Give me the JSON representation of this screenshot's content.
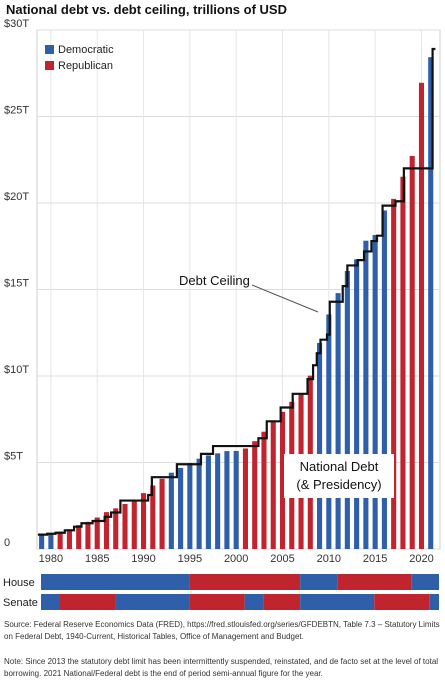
{
  "chart_data": {
    "type": "bar",
    "title": "National debt vs. debt ceiling, trillions of USD",
    "ylim": [
      0,
      30
    ],
    "y_ticks": [
      {
        "value": 0,
        "label": "0"
      },
      {
        "value": 5,
        "label": "$5T"
      },
      {
        "value": 10,
        "label": "$10T"
      },
      {
        "value": 15,
        "label": "$15T"
      },
      {
        "value": 20,
        "label": "$20T"
      },
      {
        "value": 25,
        "label": "$25T"
      },
      {
        "value": 30,
        "label": "$30T"
      }
    ],
    "x_ticks": [
      "1980",
      "1985",
      "1990",
      "1995",
      "2000",
      "2005",
      "2010",
      "2015",
      "2020"
    ],
    "grid": true,
    "legend_position": "top-left",
    "legend": [
      {
        "label": "Democratic",
        "color": "#2e5fa8"
      },
      {
        "label": "Republican",
        "color": "#c0242e"
      }
    ],
    "years": [
      1979,
      1980,
      1981,
      1982,
      1983,
      1984,
      1985,
      1986,
      1987,
      1988,
      1989,
      1990,
      1991,
      1992,
      1993,
      1994,
      1995,
      1996,
      1997,
      1998,
      1999,
      2000,
      2001,
      2002,
      2003,
      2004,
      2005,
      2006,
      2007,
      2008,
      2009,
      2010,
      2011,
      2012,
      2013,
      2014,
      2015,
      2016,
      2017,
      2018,
      2019,
      2020,
      2021
    ],
    "national_debt": [
      0.83,
      0.91,
      1.0,
      1.14,
      1.38,
      1.57,
      1.82,
      2.13,
      2.35,
      2.6,
      2.86,
      3.23,
      3.67,
      4.06,
      4.41,
      4.69,
      4.97,
      5.22,
      5.41,
      5.53,
      5.66,
      5.67,
      5.81,
      6.23,
      6.78,
      7.38,
      7.93,
      8.51,
      9.01,
      10.02,
      11.91,
      13.56,
      14.79,
      16.07,
      16.74,
      17.82,
      18.15,
      19.57,
      20.24,
      21.52,
      22.72,
      26.95,
      28.43
    ],
    "presidency": [
      "D",
      "D",
      "R",
      "R",
      "R",
      "R",
      "R",
      "R",
      "R",
      "R",
      "R",
      "R",
      "R",
      "R",
      "D",
      "D",
      "D",
      "D",
      "D",
      "D",
      "D",
      "D",
      "R",
      "R",
      "R",
      "R",
      "R",
      "R",
      "R",
      "R",
      "D",
      "D",
      "D",
      "D",
      "D",
      "D",
      "D",
      "D",
      "R",
      "R",
      "R",
      "R",
      "D"
    ],
    "ceiling_steps": [
      [
        1978.6,
        0.83
      ],
      [
        1979.6,
        0.88
      ],
      [
        1980.5,
        0.94
      ],
      [
        1981.5,
        1.08
      ],
      [
        1982.5,
        1.29
      ],
      [
        1983.3,
        1.49
      ],
      [
        1984.5,
        1.62
      ],
      [
        1985.8,
        1.86
      ],
      [
        1986.5,
        2.11
      ],
      [
        1987.5,
        2.8
      ],
      [
        1990.5,
        3.12
      ],
      [
        1990.9,
        4.15
      ],
      [
        1993.6,
        4.9
      ],
      [
        1996.2,
        5.5
      ],
      [
        1997.5,
        5.95
      ],
      [
        2002.4,
        6.4
      ],
      [
        2003.3,
        7.38
      ],
      [
        2004.8,
        8.18
      ],
      [
        2006.1,
        8.97
      ],
      [
        2007.7,
        9.82
      ],
      [
        2008.3,
        10.62
      ],
      [
        2008.7,
        11.32
      ],
      [
        2009.1,
        12.1
      ],
      [
        2009.8,
        12.39
      ],
      [
        2010.1,
        14.29
      ],
      [
        2011.5,
        15.2
      ],
      [
        2011.9,
        15.19
      ],
      [
        2012.0,
        16.39
      ],
      [
        2013.1,
        16.7
      ],
      [
        2013.8,
        17.2
      ],
      [
        2014.6,
        17.8
      ],
      [
        2015.2,
        18.11
      ],
      [
        2015.8,
        19.85
      ],
      [
        2017.2,
        20.1
      ],
      [
        2018.1,
        22.0
      ],
      [
        2020.8,
        22.0
      ],
      [
        2021.2,
        28.9
      ],
      [
        2021.5,
        28.9
      ]
    ],
    "annotations": [
      {
        "text": "Debt Ceiling"
      },
      {
        "text": "National Debt"
      },
      {
        "text": "(& Presidency)"
      }
    ]
  },
  "control_strips": [
    {
      "label": "House",
      "segments": [
        {
          "from": 1979,
          "to": 1995,
          "party": "D"
        },
        {
          "from": 1995,
          "to": 2007,
          "party": "R"
        },
        {
          "from": 2007,
          "to": 2011,
          "party": "D"
        },
        {
          "from": 2011,
          "to": 2019,
          "party": "R"
        },
        {
          "from": 2019,
          "to": 2022,
          "party": "D"
        }
      ]
    },
    {
      "label": "Senate",
      "segments": [
        {
          "from": 1979,
          "to": 1981,
          "party": "D"
        },
        {
          "from": 1981,
          "to": 1987,
          "party": "R"
        },
        {
          "from": 1987,
          "to": 1995,
          "party": "D"
        },
        {
          "from": 1995,
          "to": 2001,
          "party": "R"
        },
        {
          "from": 2001,
          "to": 2003,
          "party": "D"
        },
        {
          "from": 2003,
          "to": 2007,
          "party": "R"
        },
        {
          "from": 2007,
          "to": 2015,
          "party": "D"
        },
        {
          "from": 2015,
          "to": 2021,
          "party": "R"
        },
        {
          "from": 2021,
          "to": 2022,
          "party": "D"
        }
      ]
    }
  ],
  "source_text": "Source: Federal Reserve Economics Data (FRED), https://fred.stlouisfed.org/series/GFDEBTN, Table 7.3 – Statutory Limits on Federal Debt, 1940-Current, Historical Tables, Office of Management and Budget.",
  "note_text": "Note: Since 2013 the statutory debt limit has been intermittently suspended, reinstated, and de facto set at the level of total borrowing. 2021 National/Federal debt is the end of period semi-annual figure for the year."
}
